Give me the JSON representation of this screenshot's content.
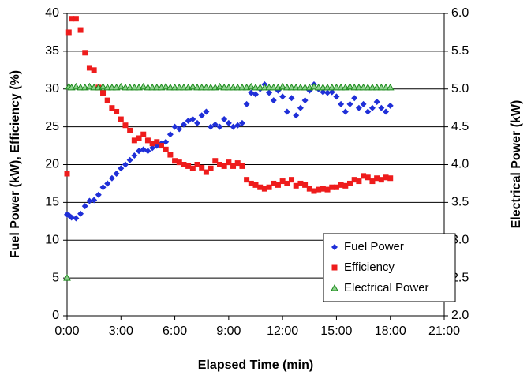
{
  "chart_data": {
    "type": "scatter",
    "xlabel": "Elapsed Time (min)",
    "ylabel": "Fuel Power (kW), Efficiency (%)",
    "y2label": "Electrical Power (kW)",
    "x": [
      0,
      0.1,
      0.25,
      0.5,
      0.75,
      1,
      1.25,
      1.5,
      1.75,
      2,
      2.25,
      2.5,
      2.75,
      3,
      3.25,
      3.5,
      3.75,
      4,
      4.25,
      4.5,
      4.75,
      5,
      5.25,
      5.5,
      5.75,
      6,
      6.25,
      6.5,
      6.75,
      7,
      7.25,
      7.5,
      7.75,
      8,
      8.25,
      8.5,
      8.75,
      9,
      9.25,
      9.5,
      9.75,
      10,
      10.25,
      10.5,
      10.75,
      11,
      11.25,
      11.5,
      11.75,
      12,
      12.25,
      12.5,
      12.75,
      13,
      13.25,
      13.5,
      13.75,
      14,
      14.25,
      14.5,
      14.75,
      15,
      15.25,
      15.5,
      15.75,
      16,
      16.25,
      16.5,
      16.75,
      17,
      17.25,
      17.5,
      17.75,
      18
    ],
    "series": [
      {
        "name": "Fuel Power",
        "color": "#1f2fd8",
        "marker": "diamond",
        "values": [
          13.4,
          13.3,
          13.0,
          12.9,
          13.5,
          14.5,
          15.2,
          15.3,
          16,
          17,
          17.5,
          18.2,
          18.8,
          19.5,
          20,
          20.6,
          21.2,
          21.8,
          22,
          21.8,
          22.2,
          22.5,
          22.8,
          23,
          24,
          25,
          24.7,
          25.3,
          25.8,
          26,
          25.5,
          26.5,
          27,
          25,
          25.3,
          25,
          26,
          25.5,
          25,
          25.2,
          25.5,
          28,
          29.5,
          29.3,
          30,
          30.6,
          29.5,
          28.5,
          29.8,
          29,
          27,
          28.8,
          26.5,
          27.5,
          28.5,
          29.8,
          30.6,
          30,
          29.6,
          29.5,
          29.6,
          29,
          28,
          27,
          28,
          28.8,
          27.5,
          28,
          27,
          27.5,
          28.3,
          27.5,
          27,
          27.8
        ]
      },
      {
        "name": "Efficiency",
        "color": "#ee1c1c",
        "marker": "square",
        "values": [
          18.8,
          37.5,
          39.3,
          39.3,
          37.8,
          34.8,
          32.8,
          32.5,
          30.2,
          29.5,
          28.5,
          27.5,
          27,
          26,
          25.2,
          24.5,
          23.2,
          23.5,
          24,
          23.2,
          22.8,
          23,
          22.5,
          22,
          21.3,
          20.5,
          20.3,
          20,
          19.8,
          19.5,
          20,
          19.6,
          19,
          19.5,
          20.5,
          20,
          19.8,
          20.3,
          19.8,
          20.2,
          19.8,
          18,
          17.5,
          17.3,
          17,
          16.8,
          17,
          17.5,
          17.3,
          17.8,
          17.5,
          18,
          17.2,
          17.5,
          17.3,
          16.8,
          16.5,
          16.7,
          16.8,
          16.7,
          17,
          17,
          17.3,
          17.2,
          17.5,
          18,
          17.8,
          18.5,
          18.3,
          17.8,
          18.2,
          18,
          18.3,
          18.2
        ]
      },
      {
        "name": "Electrical Power",
        "color": "#1a8a1a",
        "marker": "triangle",
        "axis": "y2",
        "values": [
          2.5,
          5.03,
          5.02,
          5.03,
          5.02,
          5.02,
          5.03,
          5.02,
          5.02,
          5.03,
          5.02,
          5.02,
          5.02,
          5.03,
          5.02,
          5.02,
          5.02,
          5.02,
          5.03,
          5.02,
          5.02,
          5.02,
          5.02,
          5.03,
          5.02,
          5.02,
          5.02,
          5.02,
          5.02,
          5.03,
          5.02,
          5.02,
          5.02,
          5.02,
          5.02,
          5.03,
          5.02,
          5.02,
          5.02,
          5.02,
          5.02,
          5.02,
          5.03,
          5.02,
          5.02,
          5.02,
          5.02,
          5.02,
          5.02,
          5.03,
          5.02,
          5.02,
          5.02,
          5.02,
          5.02,
          5.02,
          5.03,
          5.02,
          5.02,
          5.02,
          5.02,
          5.02,
          5.02,
          5.02,
          5.03,
          5.02,
          5.02,
          5.02,
          5.02,
          5.02,
          5.02,
          5.02,
          5.02,
          5.02
        ]
      }
    ],
    "xlim": [
      0,
      21
    ],
    "xticks": [
      {
        "value": 0,
        "label": "0:00"
      },
      {
        "value": 3,
        "label": "3:00"
      },
      {
        "value": 6,
        "label": "6:00"
      },
      {
        "value": 9,
        "label": "9:00"
      },
      {
        "value": 12,
        "label": "12:00"
      },
      {
        "value": 15,
        "label": "15:00"
      },
      {
        "value": 18,
        "label": "18:00"
      },
      {
        "value": 21,
        "label": "21:00"
      }
    ],
    "ylim": [
      0,
      40
    ],
    "yticks": [
      0,
      5,
      10,
      15,
      20,
      25,
      30,
      35,
      40
    ],
    "y2lim": [
      2,
      6
    ],
    "y2ticks": [
      {
        "value": 2,
        "label": "2.0"
      },
      {
        "value": 2.5,
        "label": "2.5"
      },
      {
        "value": 3,
        "label": "3.0"
      },
      {
        "value": 3.5,
        "label": "3.5"
      },
      {
        "value": 4,
        "label": "4.0"
      },
      {
        "value": 4.5,
        "label": "4.5"
      },
      {
        "value": 5,
        "label": "5.0"
      },
      {
        "value": 5.5,
        "label": "5.5"
      },
      {
        "value": 6,
        "label": "6.0"
      }
    ],
    "grid": true,
    "legend": "lower right"
  }
}
